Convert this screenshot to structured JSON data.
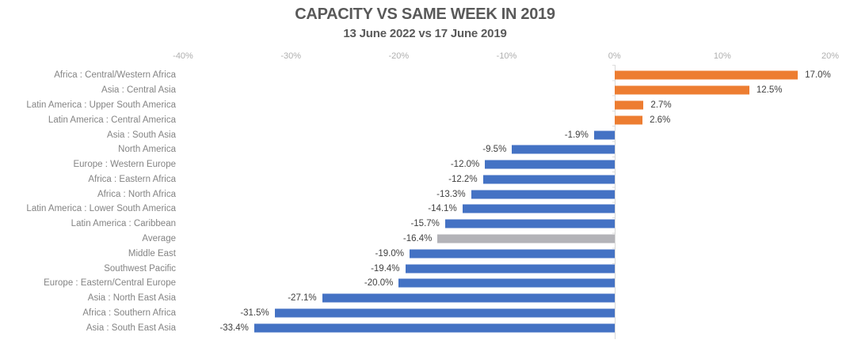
{
  "chart_data": {
    "type": "bar",
    "orientation": "horizontal",
    "title": "CAPACITY VS SAME WEEK IN 2019",
    "subtitle": "13 June 2022 vs 17 June 2019",
    "legend": "none",
    "grid": "zero-line-only",
    "x_axis": {
      "min": -40,
      "max": 20,
      "ticks": [
        {
          "label": "-40%",
          "value": -40
        },
        {
          "label": "-30%",
          "value": -30
        },
        {
          "label": "-20%",
          "value": -20
        },
        {
          "label": "-10%",
          "value": -10
        },
        {
          "label": "0%",
          "value": 0
        },
        {
          "label": "10%",
          "value": 10
        },
        {
          "label": "20%",
          "value": 20
        }
      ]
    },
    "colors": {
      "positive": "#ED7D31",
      "negative": "#4472C4",
      "average": "#B3B3B8",
      "zero_line": "#D9D9D9"
    },
    "rows": [
      {
        "label": "Africa : Central/Western Africa",
        "value": 17.0,
        "display": "17.0%",
        "color": "positive"
      },
      {
        "label": "Asia : Central Asia",
        "value": 12.5,
        "display": "12.5%",
        "color": "positive"
      },
      {
        "label": "Latin America : Upper South America",
        "value": 2.7,
        "display": "2.7%",
        "color": "positive"
      },
      {
        "label": "Latin America : Central America",
        "value": 2.6,
        "display": "2.6%",
        "color": "positive"
      },
      {
        "label": "Asia : South Asia",
        "value": -1.9,
        "display": "-1.9%",
        "color": "negative"
      },
      {
        "label": "North America",
        "value": -9.5,
        "display": "-9.5%",
        "color": "negative"
      },
      {
        "label": "Europe : Western Europe",
        "value": -12.0,
        "display": "-12.0%",
        "color": "negative"
      },
      {
        "label": "Africa : Eastern Africa",
        "value": -12.2,
        "display": "-12.2%",
        "color": "negative"
      },
      {
        "label": "Africa : North Africa",
        "value": -13.3,
        "display": "-13.3%",
        "color": "negative"
      },
      {
        "label": "Latin America : Lower South America",
        "value": -14.1,
        "display": "-14.1%",
        "color": "negative"
      },
      {
        "label": "Latin America : Caribbean",
        "value": -15.7,
        "display": "-15.7%",
        "color": "negative"
      },
      {
        "label": "Average",
        "value": -16.4,
        "display": "-16.4%",
        "color": "average"
      },
      {
        "label": "Middle East",
        "value": -19.0,
        "display": "-19.0%",
        "color": "negative"
      },
      {
        "label": "Southwest Pacific",
        "value": -19.4,
        "display": "-19.4%",
        "color": "negative"
      },
      {
        "label": "Europe : Eastern/Central Europe",
        "value": -20.0,
        "display": "-20.0%",
        "color": "negative"
      },
      {
        "label": "Asia : North East Asia",
        "value": -27.1,
        "display": "-27.1%",
        "color": "negative"
      },
      {
        "label": "Africa : Southern Africa",
        "value": -31.5,
        "display": "-31.5%",
        "color": "negative"
      },
      {
        "label": "Asia : South East Asia",
        "value": -33.4,
        "display": "-33.4%",
        "color": "negative"
      }
    ]
  }
}
